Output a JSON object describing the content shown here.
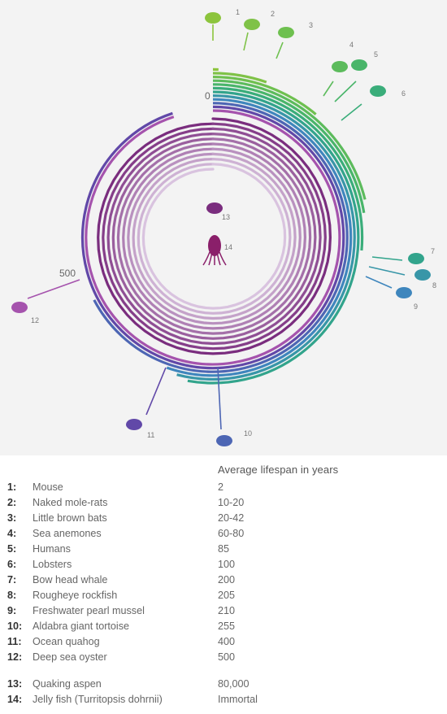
{
  "chart_data": {
    "type": "radial-bar",
    "tick_labels": [
      "0",
      "500"
    ],
    "series": [
      {
        "id": "1",
        "label": "1",
        "name": "Mouse",
        "value_text": "2",
        "value": 2,
        "color": "#8cc43c"
      },
      {
        "id": "2",
        "label": "2",
        "name": "Naked mole-rats",
        "value_text": "10-20",
        "value": 20,
        "color": "#7fc247"
      },
      {
        "id": "3",
        "label": "3",
        "name": "Little brown bats",
        "value_text": "20-42",
        "value": 42,
        "color": "#6ec04f"
      },
      {
        "id": "4",
        "label": "4",
        "name": "Sea anemones",
        "value_text": "60-80",
        "value": 80,
        "color": "#5cbb5c"
      },
      {
        "id": "5",
        "label": "5",
        "name": "Humans",
        "value_text": "85",
        "value": 85,
        "color": "#49b56a"
      },
      {
        "id": "6",
        "label": "6",
        "name": "Lobsters",
        "value_text": "100",
        "value": 100,
        "color": "#3aad7a"
      },
      {
        "id": "7",
        "label": "7",
        "name": "Bow head whale",
        "value_text": "200",
        "value": 200,
        "color": "#32a48c"
      },
      {
        "id": "8",
        "label": "8",
        "name": "Rougheye rockfish",
        "value_text": "205",
        "value": 205,
        "color": "#3896a8"
      },
      {
        "id": "9",
        "label": "9",
        "name": "Freshwater pearl mussel",
        "value_text": "210",
        "value": 210,
        "color": "#3f86bd"
      },
      {
        "id": "10",
        "label": "10",
        "name": "Aldabra giant tortoise",
        "value_text": "255",
        "value": 255,
        "color": "#4d66b4"
      },
      {
        "id": "11",
        "label": "11",
        "name": "Ocean quahog",
        "value_text": "400",
        "value": 400,
        "color": "#6148a8"
      },
      {
        "id": "12",
        "label": "12",
        "name": "Deep sea oyster",
        "value_text": "500",
        "value": 500,
        "color": "#a553ad"
      },
      {
        "id": "13",
        "label": "13",
        "name": "Quaking aspen",
        "value_text": "80,000",
        "value": 80000,
        "color": "#7a2d7e"
      },
      {
        "id": "14",
        "label": "14",
        "name": "Jelly fish (Turritopsis dohrnii)",
        "value_text": "Immortal",
        "value": null,
        "color": "#8a1f6a"
      }
    ],
    "legend_header": "Average lifespan in years"
  }
}
